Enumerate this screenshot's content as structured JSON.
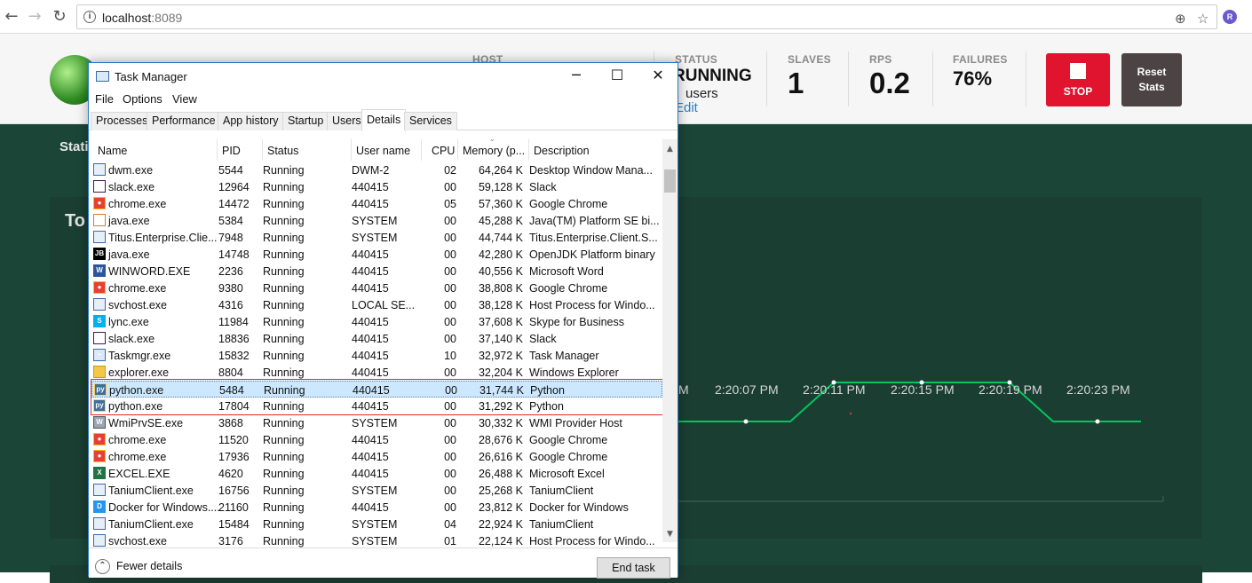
{
  "browser": {
    "url_host": "localhost",
    "url_port": ":8089",
    "ext_badge": "R"
  },
  "locust": {
    "host_label": "HOST",
    "status_label": "STATUS",
    "status_value": "RUNNING",
    "users_text": "users",
    "edit_link": "Edit",
    "slaves_label": "SLAVES",
    "slaves_value": "1",
    "rps_label": "RPS",
    "rps_value": "0.2",
    "failures_label": "FAILURES",
    "failures_value": "76%",
    "stop_label": "STOP",
    "reset_label": "Reset Stats",
    "tab_partial": "Stati",
    "panel_title_partial": "To",
    "x_ticks": [
      "M",
      "2:20:07 PM",
      "2:20:11 PM",
      "2:20:15 PM",
      "2:20:19 PM",
      "2:20:23 PM"
    ],
    "line_color": "#00c65e"
  },
  "taskmanager": {
    "title": "Task Manager",
    "menu": [
      "File",
      "Options",
      "View"
    ],
    "tabs": [
      "Processes",
      "Performance",
      "App history",
      "Startup",
      "Users",
      "Details",
      "Services"
    ],
    "active_tab": "Details",
    "columns": [
      "Name",
      "PID",
      "Status",
      "User name",
      "CPU",
      "Memory (p...",
      "Description"
    ],
    "rows": [
      {
        "name": "dwm.exe",
        "pid": "5544",
        "status": "Running",
        "user": "DWM-2",
        "cpu": "02",
        "mem": "64,264 K",
        "desc": "Desktop Window Mana...",
        "icon": "window-icon"
      },
      {
        "name": "slack.exe",
        "pid": "12964",
        "status": "Running",
        "user": "440415",
        "cpu": "00",
        "mem": "59,128 K",
        "desc": "Slack",
        "icon": "slack-icon"
      },
      {
        "name": "chrome.exe",
        "pid": "14472",
        "status": "Running",
        "user": "440415",
        "cpu": "05",
        "mem": "57,360 K",
        "desc": "Google Chrome",
        "icon": "chrome-icon"
      },
      {
        "name": "java.exe",
        "pid": "5384",
        "status": "Running",
        "user": "SYSTEM",
        "cpu": "00",
        "mem": "45,288 K",
        "desc": "Java(TM) Platform SE bi...",
        "icon": "java-icon"
      },
      {
        "name": "Titus.Enterprise.Clie...",
        "pid": "7948",
        "status": "Running",
        "user": "SYSTEM",
        "cpu": "00",
        "mem": "44,744 K",
        "desc": "Titus.Enterprise.Client.S...",
        "icon": "window-icon"
      },
      {
        "name": "java.exe",
        "pid": "14748",
        "status": "Running",
        "user": "440415",
        "cpu": "00",
        "mem": "42,280 K",
        "desc": "OpenJDK Platform binary",
        "icon": "jb-icon"
      },
      {
        "name": "WINWORD.EXE",
        "pid": "2236",
        "status": "Running",
        "user": "440415",
        "cpu": "00",
        "mem": "40,556 K",
        "desc": "Microsoft Word",
        "icon": "word-icon"
      },
      {
        "name": "chrome.exe",
        "pid": "9380",
        "status": "Running",
        "user": "440415",
        "cpu": "00",
        "mem": "38,808 K",
        "desc": "Google Chrome",
        "icon": "chrome-icon"
      },
      {
        "name": "svchost.exe",
        "pid": "4316",
        "status": "Running",
        "user": "LOCAL SE...",
        "cpu": "00",
        "mem": "38,128 K",
        "desc": "Host Process for Windo...",
        "icon": "window-icon"
      },
      {
        "name": "lync.exe",
        "pid": "11984",
        "status": "Running",
        "user": "440415",
        "cpu": "00",
        "mem": "37,608 K",
        "desc": "Skype for Business",
        "icon": "skype-icon"
      },
      {
        "name": "slack.exe",
        "pid": "18836",
        "status": "Running",
        "user": "440415",
        "cpu": "00",
        "mem": "37,140 K",
        "desc": "Slack",
        "icon": "slack-icon"
      },
      {
        "name": "Taskmgr.exe",
        "pid": "15832",
        "status": "Running",
        "user": "440415",
        "cpu": "10",
        "mem": "32,972 K",
        "desc": "Task Manager",
        "icon": "taskmgr-icon"
      },
      {
        "name": "explorer.exe",
        "pid": "8804",
        "status": "Running",
        "user": "440415",
        "cpu": "00",
        "mem": "32,204 K",
        "desc": "Windows Explorer",
        "icon": "folder-icon"
      },
      {
        "name": "python.exe",
        "pid": "5484",
        "status": "Running",
        "user": "440415",
        "cpu": "00",
        "mem": "31,744 K",
        "desc": "Python",
        "icon": "python-icon",
        "selected": true
      },
      {
        "name": "python.exe",
        "pid": "17804",
        "status": "Running",
        "user": "440415",
        "cpu": "00",
        "mem": "31,292 K",
        "desc": "Python",
        "icon": "python-icon"
      },
      {
        "name": "WmiPrvSE.exe",
        "pid": "3868",
        "status": "Running",
        "user": "SYSTEM",
        "cpu": "00",
        "mem": "30,332 K",
        "desc": "WMI Provider Host",
        "icon": "wmi-icon"
      },
      {
        "name": "chrome.exe",
        "pid": "11520",
        "status": "Running",
        "user": "440415",
        "cpu": "00",
        "mem": "28,676 K",
        "desc": "Google Chrome",
        "icon": "chrome-icon"
      },
      {
        "name": "chrome.exe",
        "pid": "17936",
        "status": "Running",
        "user": "440415",
        "cpu": "00",
        "mem": "26,616 K",
        "desc": "Google Chrome",
        "icon": "chrome-icon"
      },
      {
        "name": "EXCEL.EXE",
        "pid": "4620",
        "status": "Running",
        "user": "440415",
        "cpu": "00",
        "mem": "26,488 K",
        "desc": "Microsoft Excel",
        "icon": "excel-icon"
      },
      {
        "name": "TaniumClient.exe",
        "pid": "16756",
        "status": "Running",
        "user": "SYSTEM",
        "cpu": "00",
        "mem": "25,268 K",
        "desc": "TaniumClient",
        "icon": "window-icon"
      },
      {
        "name": "Docker for Windows....",
        "pid": "21160",
        "status": "Running",
        "user": "440415",
        "cpu": "00",
        "mem": "23,812 K",
        "desc": "Docker for Windows",
        "icon": "docker-icon"
      },
      {
        "name": "TaniumClient.exe",
        "pid": "15484",
        "status": "Running",
        "user": "SYSTEM",
        "cpu": "04",
        "mem": "22,924 K",
        "desc": "TaniumClient",
        "icon": "window-icon"
      },
      {
        "name": "svchost.exe",
        "pid": "3176",
        "status": "Running",
        "user": "SYSTEM",
        "cpu": "01",
        "mem": "22,124 K",
        "desc": "Host Process for Windo...",
        "icon": "window-icon"
      }
    ],
    "fewer_details": "Fewer details",
    "end_task": "End task"
  }
}
